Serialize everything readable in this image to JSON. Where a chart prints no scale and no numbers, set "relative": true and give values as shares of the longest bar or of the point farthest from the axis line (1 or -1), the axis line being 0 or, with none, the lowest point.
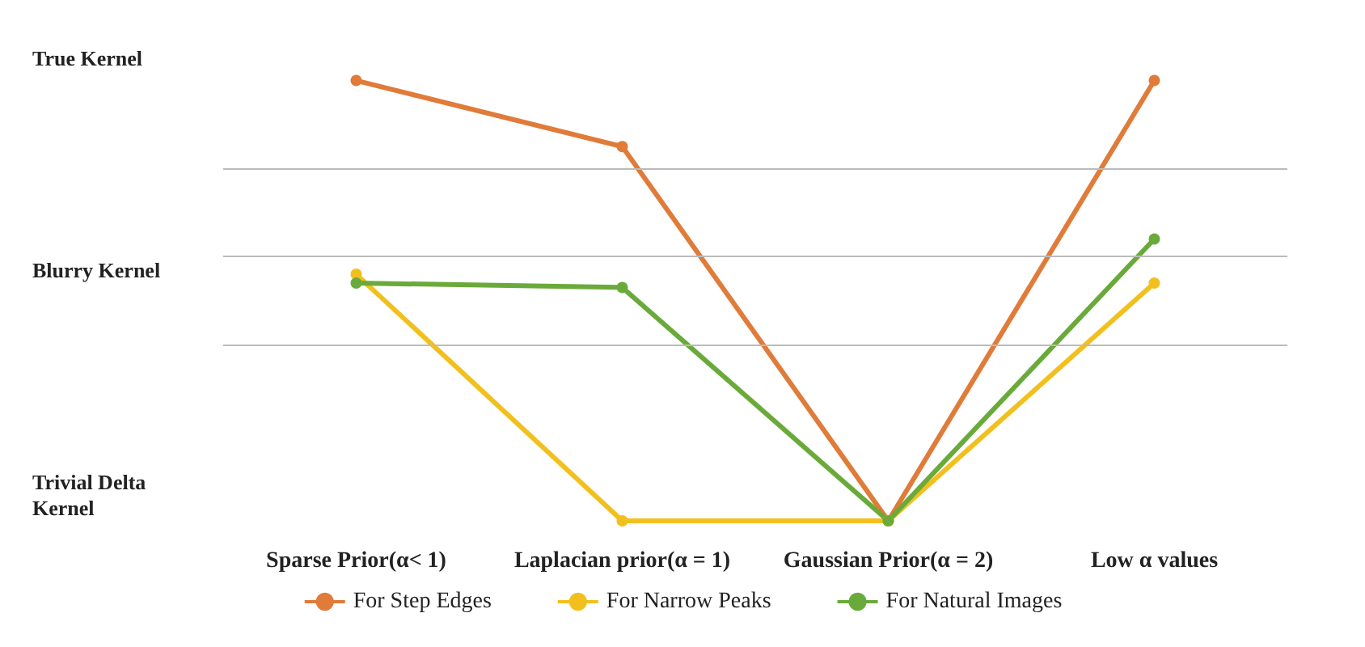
{
  "chart_data": {
    "type": "line",
    "relative": true,
    "categories": [
      "Sparse Prior(α< 1)",
      "Laplacian prior(α = 1)",
      "Gaussian Prior(α = 2)",
      "Low α values"
    ],
    "series": [
      {
        "name": "For Step Edges",
        "color": "#e07b39",
        "values": [
          1,
          0.85,
          0,
          1
        ]
      },
      {
        "name": "For Narrow Peaks",
        "color": "#f2c01e",
        "values": [
          0.56,
          0,
          0,
          0.54
        ]
      },
      {
        "name": "For Natural Images",
        "color": "#6aaa3a",
        "values": [
          0.54,
          0.53,
          0,
          0.64
        ]
      }
    ],
    "annotations": [
      "True Kernel",
      "Blurry Kernel",
      "Trivial Delta\nKernel"
    ],
    "ref_lines": [
      {
        "axis": "y",
        "value": 0.4,
        "color": "#bbbbbb"
      },
      {
        "axis": "y",
        "value": 0.6,
        "color": "#bbbbbb"
      },
      {
        "axis": "y",
        "value": 0.8,
        "color": "#bbbbbb"
      }
    ],
    "legend": "bottom",
    "marker": "circle",
    "line_style": "solid"
  }
}
